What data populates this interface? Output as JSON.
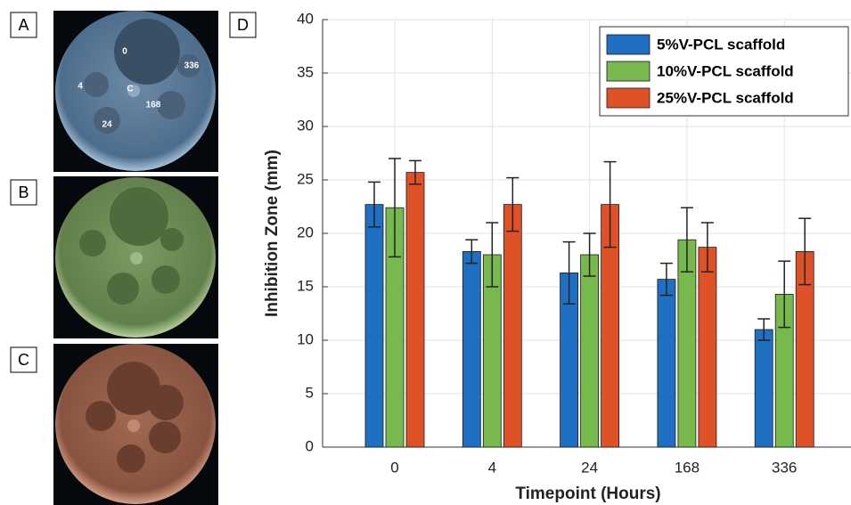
{
  "panel_labels": [
    "A",
    "B",
    "C",
    "D"
  ],
  "plate_labels": [
    "0",
    "336",
    "4",
    "C",
    "168",
    "24"
  ],
  "chart_data": {
    "type": "bar",
    "x_label": "Timepoint (Hours)",
    "y_label": "Inhibition Zone (mm)",
    "categories": [
      "0",
      "4",
      "24",
      "168",
      "336"
    ],
    "series": [
      {
        "name": "5%V-PCL scaffold",
        "color": "#1f6fc3",
        "values": [
          22.7,
          18.3,
          16.3,
          15.7,
          11.0
        ],
        "errors": [
          2.1,
          1.1,
          2.9,
          1.5,
          1.0
        ]
      },
      {
        "name": "10%V-PCL scaffold",
        "color": "#78b94d",
        "values": [
          22.4,
          18.0,
          18.0,
          19.4,
          14.3
        ],
        "errors": [
          4.6,
          3.0,
          2.0,
          3.0,
          3.1
        ]
      },
      {
        "name": "25%V-PCL scaffold",
        "color": "#df5228",
        "values": [
          25.7,
          22.7,
          22.7,
          18.7,
          18.3
        ],
        "errors": [
          1.1,
          2.5,
          4.0,
          2.3,
          3.1
        ]
      }
    ],
    "ylim": [
      0,
      40
    ],
    "yticks": [
      0,
      5,
      10,
      15,
      20,
      25,
      30,
      35,
      40
    ],
    "grid": true,
    "legend": "upper right"
  }
}
